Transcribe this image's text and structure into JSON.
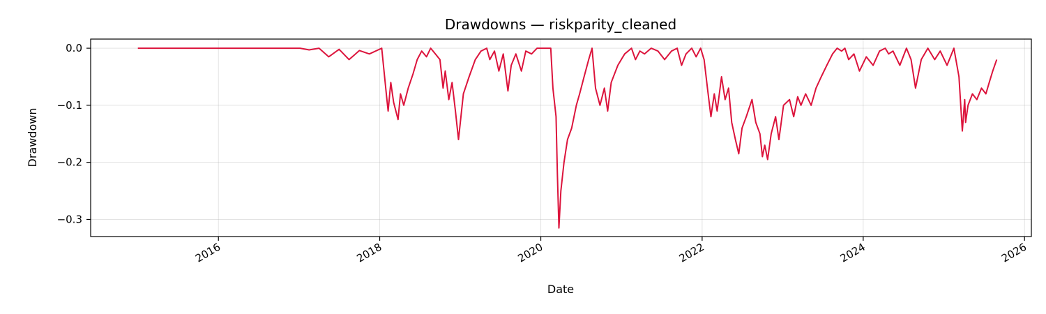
{
  "chart_data": {
    "type": "line",
    "title": "Drawdowns — riskparity_cleaned",
    "xlabel": "Date",
    "ylabel": "Drawdown",
    "xlim": [
      "2014-06-01",
      "2026-02-01"
    ],
    "ylim": [
      -0.33,
      0.016
    ],
    "x_ticks": [
      "2016",
      "2018",
      "2020",
      "2022",
      "2024",
      "2026"
    ],
    "y_ticks": [
      "0.0",
      "−0.1",
      "−0.2",
      "−0.3"
    ],
    "y_tick_values": [
      0.0,
      -0.1,
      -0.2,
      -0.3
    ],
    "grid": true,
    "line_color": "#dc143c",
    "series": [
      {
        "x": [
          "2015-01-01",
          "2016-06-01",
          "2017-01-05",
          "2017-02-15",
          "2017-04-01",
          "2017-05-15",
          "2017-07-01",
          "2017-08-15",
          "2017-10-01",
          "2017-11-15",
          "2018-01-10",
          "2018-02-01",
          "2018-02-08",
          "2018-02-20",
          "2018-03-05",
          "2018-03-25",
          "2018-04-05",
          "2018-04-20",
          "2018-05-10",
          "2018-06-01",
          "2018-06-20",
          "2018-07-10",
          "2018-08-01",
          "2018-08-20",
          "2018-09-10",
          "2018-10-01",
          "2018-10-15",
          "2018-10-25",
          "2018-11-10",
          "2018-11-25",
          "2018-12-10",
          "2018-12-24",
          "2019-01-15",
          "2019-02-10",
          "2019-03-10",
          "2019-04-05",
          "2019-05-01",
          "2019-05-15",
          "2019-06-05",
          "2019-06-25",
          "2019-07-15",
          "2019-08-05",
          "2019-08-20",
          "2019-09-10",
          "2019-10-05",
          "2019-10-25",
          "2019-11-20",
          "2019-12-15",
          "2020-01-15",
          "2020-02-15",
          "2020-02-25",
          "2020-03-10",
          "2020-03-16",
          "2020-03-23",
          "2020-04-01",
          "2020-04-15",
          "2020-05-01",
          "2020-05-20",
          "2020-06-10",
          "2020-06-25",
          "2020-07-15",
          "2020-08-05",
          "2020-08-20",
          "2020-09-05",
          "2020-09-25",
          "2020-10-15",
          "2020-10-30",
          "2020-11-15",
          "2020-12-15",
          "2021-01-15",
          "2021-02-15",
          "2021-03-05",
          "2021-03-25",
          "2021-04-15",
          "2021-05-15",
          "2021-06-15",
          "2021-07-15",
          "2021-08-15",
          "2021-09-10",
          "2021-09-30",
          "2021-10-20",
          "2021-11-15",
          "2021-12-05",
          "2021-12-25",
          "2022-01-10",
          "2022-01-25",
          "2022-02-10",
          "2022-02-25",
          "2022-03-10",
          "2022-03-30",
          "2022-04-15",
          "2022-05-01",
          "2022-05-15",
          "2022-06-01",
          "2022-06-16",
          "2022-07-01",
          "2022-07-20",
          "2022-08-15",
          "2022-09-01",
          "2022-09-20",
          "2022-10-01",
          "2022-10-12",
          "2022-10-25",
          "2022-11-10",
          "2022-11-30",
          "2022-12-15",
          "2023-01-05",
          "2023-02-01",
          "2023-02-20",
          "2023-03-10",
          "2023-03-25",
          "2023-04-15",
          "2023-05-10",
          "2023-06-01",
          "2023-06-25",
          "2023-07-20",
          "2023-08-15",
          "2023-09-05",
          "2023-09-25",
          "2023-10-10",
          "2023-10-27",
          "2023-11-20",
          "2023-12-15",
          "2024-01-15",
          "2024-02-15",
          "2024-03-15",
          "2024-04-10",
          "2024-04-25",
          "2024-05-15",
          "2024-06-15",
          "2024-07-15",
          "2024-08-05",
          "2024-08-25",
          "2024-09-20",
          "2024-10-20",
          "2024-11-20",
          "2024-12-15",
          "2025-01-15",
          "2025-02-15",
          "2025-03-10",
          "2025-03-25",
          "2025-04-05",
          "2025-04-09",
          "2025-04-20",
          "2025-05-10",
          "2025-05-30",
          "2025-06-20",
          "2025-07-10",
          "2025-07-25",
          "2025-08-10",
          "2025-08-28"
        ],
        "values": [
          0.0,
          0.0,
          0.0,
          -0.003,
          0.0,
          -0.015,
          -0.002,
          -0.02,
          -0.004,
          -0.01,
          0.0,
          -0.085,
          -0.11,
          -0.06,
          -0.095,
          -0.125,
          -0.08,
          -0.1,
          -0.07,
          -0.045,
          -0.02,
          -0.005,
          -0.015,
          0.0,
          -0.01,
          -0.02,
          -0.07,
          -0.04,
          -0.09,
          -0.06,
          -0.11,
          -0.16,
          -0.08,
          -0.05,
          -0.02,
          -0.005,
          0.0,
          -0.02,
          -0.005,
          -0.04,
          -0.01,
          -0.075,
          -0.03,
          -0.01,
          -0.04,
          -0.005,
          -0.01,
          0.0,
          0.0,
          0.0,
          -0.07,
          -0.12,
          -0.22,
          -0.315,
          -0.25,
          -0.2,
          -0.16,
          -0.14,
          -0.1,
          -0.08,
          -0.05,
          -0.02,
          0.0,
          -0.07,
          -0.1,
          -0.07,
          -0.11,
          -0.06,
          -0.03,
          -0.01,
          0.0,
          -0.02,
          -0.005,
          -0.01,
          0.0,
          -0.005,
          -0.02,
          -0.005,
          0.0,
          -0.03,
          -0.01,
          0.0,
          -0.015,
          0.0,
          -0.02,
          -0.07,
          -0.12,
          -0.08,
          -0.11,
          -0.05,
          -0.09,
          -0.07,
          -0.13,
          -0.16,
          -0.185,
          -0.14,
          -0.12,
          -0.09,
          -0.13,
          -0.15,
          -0.19,
          -0.17,
          -0.195,
          -0.15,
          -0.12,
          -0.16,
          -0.1,
          -0.09,
          -0.12,
          -0.085,
          -0.1,
          -0.08,
          -0.1,
          -0.07,
          -0.05,
          -0.03,
          -0.01,
          0.0,
          -0.005,
          0.0,
          -0.02,
          -0.01,
          -0.04,
          -0.015,
          -0.03,
          -0.005,
          0.0,
          -0.01,
          -0.005,
          -0.03,
          0.0,
          -0.02,
          -0.07,
          -0.02,
          0.0,
          -0.02,
          -0.005,
          -0.03,
          0.0,
          -0.05,
          -0.145,
          -0.09,
          -0.13,
          -0.1,
          -0.08,
          -0.09,
          -0.07,
          -0.08,
          -0.06,
          -0.04,
          -0.02
        ]
      }
    ]
  }
}
